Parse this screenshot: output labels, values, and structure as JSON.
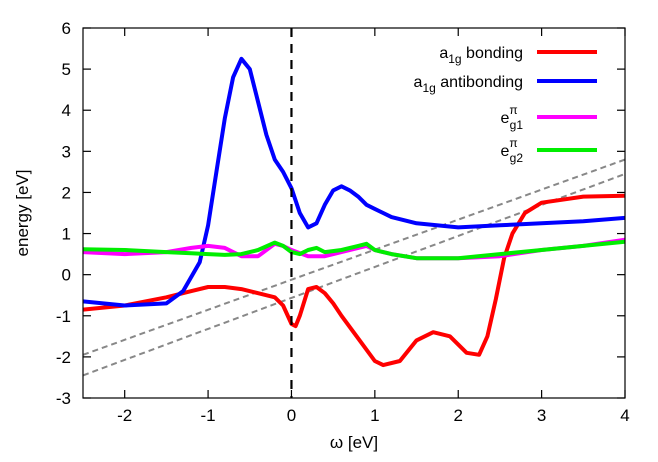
{
  "chart_data": {
    "type": "line",
    "title": "",
    "xlabel": "ω [eV]",
    "ylabel": "energy [eV]",
    "xlim": [
      -2.5,
      4
    ],
    "ylim": [
      -3,
      6
    ],
    "xticks": [
      "-2",
      "-1",
      "0",
      "1",
      "2",
      "3",
      "4"
    ],
    "xtick_values": [
      -2,
      -1,
      0,
      1,
      2,
      3,
      4
    ],
    "yticks": [
      "-3",
      "-2",
      "-1",
      "0",
      "1",
      "2",
      "3",
      "4",
      "5",
      "6"
    ],
    "ytick_values": [
      -3,
      -2,
      -1,
      0,
      1,
      2,
      3,
      4,
      5,
      6
    ],
    "grid": false,
    "legend_position": "top-right",
    "vertical_line_x": 0,
    "series": [
      {
        "name_main": "a",
        "name_sub": "1g",
        "name_sup": "",
        "name_suffix": " bonding",
        "color": "#ff0000",
        "x": [
          -2.5,
          -2.0,
          -1.5,
          -1.2,
          -1.0,
          -0.8,
          -0.6,
          -0.4,
          -0.2,
          -0.1,
          0.0,
          0.05,
          0.1,
          0.2,
          0.3,
          0.4,
          0.5,
          0.6,
          0.8,
          1.0,
          1.1,
          1.3,
          1.5,
          1.7,
          1.9,
          2.1,
          2.25,
          2.35,
          2.45,
          2.55,
          2.65,
          2.8,
          3.0,
          3.5,
          4.0
        ],
        "y": [
          -0.85,
          -0.75,
          -0.55,
          -0.4,
          -0.3,
          -0.3,
          -0.35,
          -0.45,
          -0.55,
          -0.75,
          -1.2,
          -1.25,
          -1.0,
          -0.35,
          -0.3,
          -0.45,
          -0.7,
          -1.0,
          -1.55,
          -2.1,
          -2.2,
          -2.1,
          -1.6,
          -1.4,
          -1.5,
          -1.9,
          -1.95,
          -1.5,
          -0.6,
          0.4,
          1.0,
          1.5,
          1.75,
          1.9,
          1.92
        ]
      },
      {
        "name_main": "a",
        "name_sub": "1g",
        "name_sup": "",
        "name_suffix": " antibonding",
        "color": "#0000ff",
        "x": [
          -2.5,
          -2.0,
          -1.5,
          -1.3,
          -1.1,
          -1.0,
          -0.9,
          -0.8,
          -0.7,
          -0.6,
          -0.5,
          -0.4,
          -0.3,
          -0.2,
          -0.1,
          0.0,
          0.1,
          0.2,
          0.3,
          0.4,
          0.5,
          0.6,
          0.7,
          0.8,
          0.9,
          1.0,
          1.2,
          1.5,
          2.0,
          2.5,
          3.0,
          3.5,
          4.0
        ],
        "y": [
          -0.65,
          -0.75,
          -0.7,
          -0.4,
          0.3,
          1.2,
          2.5,
          3.8,
          4.8,
          5.25,
          5.0,
          4.2,
          3.4,
          2.8,
          2.5,
          2.1,
          1.5,
          1.15,
          1.25,
          1.7,
          2.05,
          2.15,
          2.05,
          1.9,
          1.7,
          1.6,
          1.4,
          1.25,
          1.15,
          1.2,
          1.25,
          1.3,
          1.38
        ]
      },
      {
        "name_main": "e",
        "name_sub": "g1",
        "name_sup": "π",
        "name_suffix": "",
        "color": "#ff00ff",
        "x": [
          -2.5,
          -2.0,
          -1.5,
          -1.2,
          -1.0,
          -0.8,
          -0.6,
          -0.4,
          -0.2,
          -0.1,
          0.0,
          0.2,
          0.4,
          0.6,
          0.8,
          0.9,
          1.0,
          1.2,
          1.5,
          2.0,
          2.5,
          3.0,
          3.5,
          4.0
        ],
        "y": [
          0.55,
          0.5,
          0.55,
          0.65,
          0.7,
          0.65,
          0.45,
          0.45,
          0.75,
          0.7,
          0.6,
          0.45,
          0.45,
          0.55,
          0.65,
          0.7,
          0.6,
          0.5,
          0.4,
          0.4,
          0.45,
          0.6,
          0.7,
          0.85
        ]
      },
      {
        "name_main": "e",
        "name_sub": "g2",
        "name_sup": "π",
        "name_suffix": "",
        "color": "#00ee00",
        "x": [
          -2.5,
          -2.0,
          -1.5,
          -1.2,
          -1.0,
          -0.8,
          -0.6,
          -0.4,
          -0.2,
          -0.1,
          0.0,
          0.1,
          0.2,
          0.3,
          0.4,
          0.6,
          0.8,
          0.9,
          1.0,
          1.2,
          1.5,
          2.0,
          2.5,
          3.0,
          3.5,
          4.0
        ],
        "y": [
          0.62,
          0.6,
          0.55,
          0.52,
          0.5,
          0.48,
          0.5,
          0.6,
          0.78,
          0.7,
          0.55,
          0.5,
          0.6,
          0.65,
          0.55,
          0.6,
          0.7,
          0.75,
          0.6,
          0.5,
          0.4,
          0.4,
          0.5,
          0.6,
          0.7,
          0.8
        ]
      }
    ],
    "reference_lines": [
      {
        "color": "#888888",
        "dash": "dashed",
        "x": [
          -2.5,
          4.0
        ],
        "y": [
          -1.95,
          2.8
        ]
      },
      {
        "color": "#888888",
        "dash": "dashed",
        "x": [
          -2.5,
          4.0
        ],
        "y": [
          -2.45,
          2.45
        ]
      }
    ]
  }
}
